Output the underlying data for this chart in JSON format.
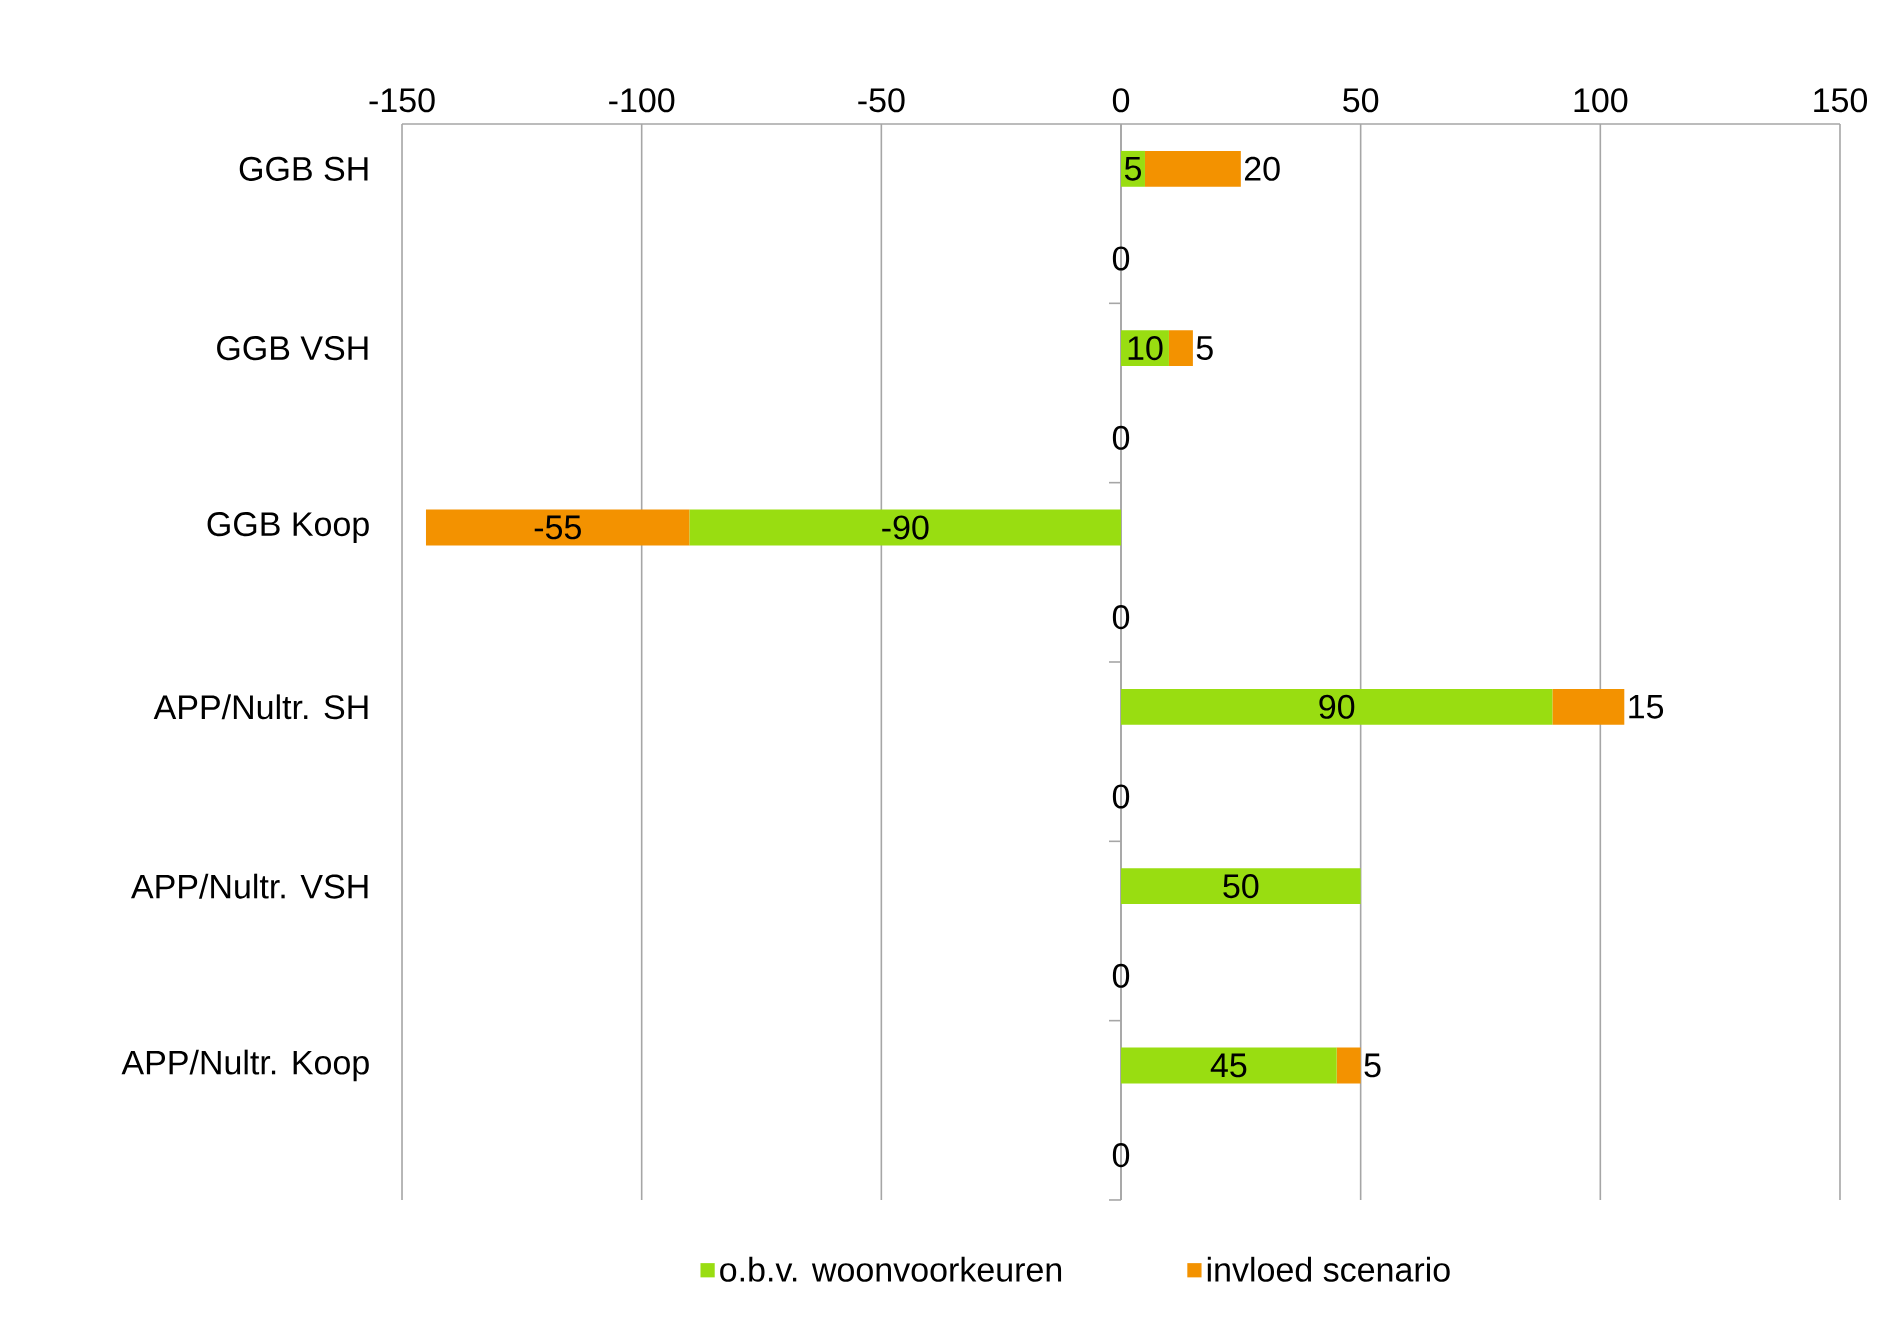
{
  "chart_data": {
    "type": "bar",
    "orientation": "horizontal",
    "stacked": true,
    "categories": [
      "GGB SH",
      null,
      "GGB VSH",
      null,
      "GGB Koop",
      null,
      "APP/Nultr. SH",
      null,
      "APP/Nultr. VSH",
      null,
      "APP/Nultr. Koop",
      null
    ],
    "series": [
      {
        "name": "o.b.v. woonvoorkeuren",
        "color": "#99dd11",
        "values": [
          5,
          0,
          10,
          0,
          -90,
          0,
          90,
          0,
          50,
          0,
          45,
          0
        ],
        "value_labels": [
          "5",
          "0",
          "10",
          "0",
          "-90",
          "0",
          "90",
          "0",
          "50",
          "0",
          "45",
          "0"
        ]
      },
      {
        "name": "invloed scenario",
        "color": "#f39200",
        "values": [
          20,
          0,
          5,
          0,
          -55,
          0,
          15,
          0,
          0,
          0,
          5,
          0
        ],
        "value_labels": [
          "20",
          null,
          "5",
          null,
          "-55",
          null,
          "15",
          null,
          null,
          null,
          "5",
          null
        ]
      }
    ],
    "xlim": [
      -150,
      150
    ],
    "xticks": [
      -150,
      -100,
      -50,
      0,
      50,
      100,
      150
    ],
    "grid": "x",
    "legend": "bottom"
  }
}
